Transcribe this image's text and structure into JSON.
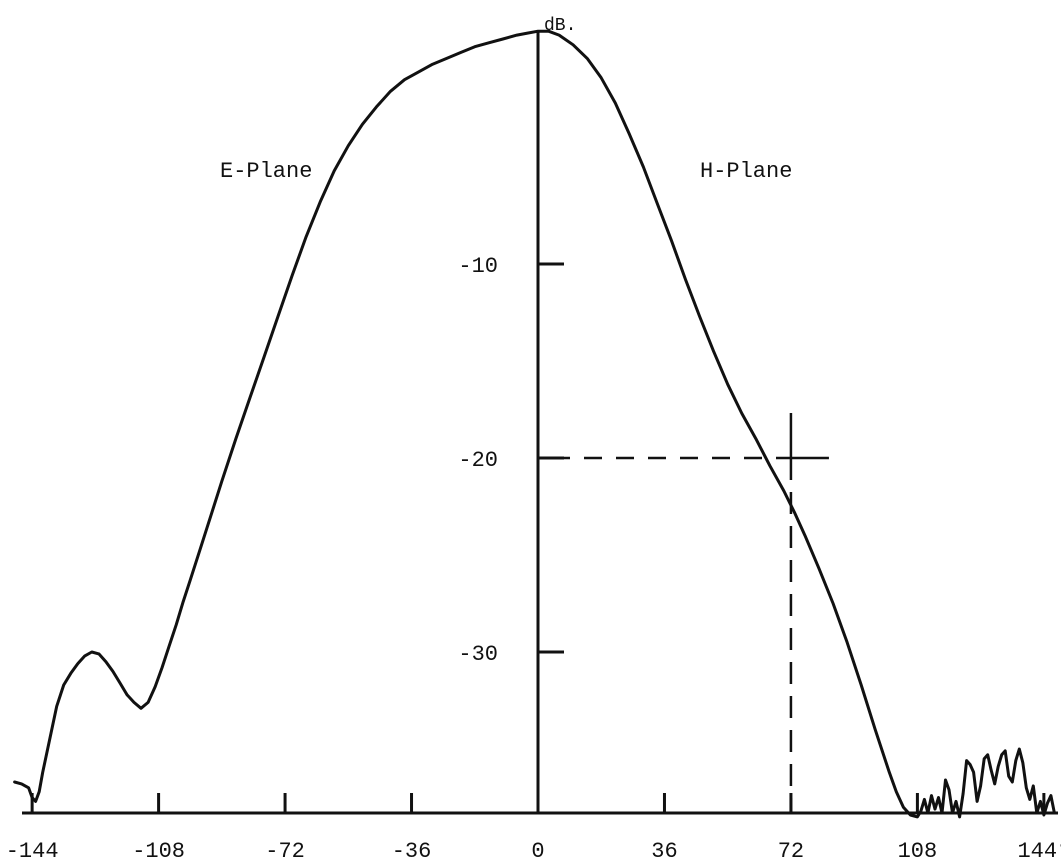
{
  "chart_data": {
    "type": "line",
    "title": "",
    "ylabel": "dB.",
    "xlabel": "",
    "x_tick_labels": [
      "-144",
      "-108",
      "-72",
      "-36",
      "0",
      "36",
      "72",
      "108",
      "144°"
    ],
    "x_ticks": [
      -144,
      -108,
      -72,
      -36,
      0,
      36,
      72,
      108,
      144
    ],
    "y_tick_labels": [
      "-10",
      "-20",
      "-30"
    ],
    "y_ticks": [
      -10,
      -20,
      -30
    ],
    "xlim": [
      -150,
      150
    ],
    "ylim": [
      -38.5,
      3.5
    ],
    "annotations": [
      {
        "text": "E-Plane"
      },
      {
        "text": "H-Plane"
      }
    ],
    "grid": false,
    "series": [
      {
        "x": [
          -149,
          -147,
          -145,
          -144,
          -143,
          -142,
          -141,
          -139,
          -137,
          -135,
          -133,
          -131,
          -129,
          -127,
          -125,
          -123,
          -121,
          -119,
          -117,
          -115,
          -113,
          -111,
          -109,
          -107,
          -105,
          -103,
          -101,
          -99,
          -96,
          -93,
          -90,
          -86,
          -82,
          -78,
          -74,
          -70,
          -66,
          -62,
          -58,
          -54,
          -50,
          -46,
          -42,
          -38,
          -34,
          -30,
          -26,
          -22,
          -18,
          -14,
          -10,
          -6,
          -3,
          0,
          3,
          6,
          10,
          14,
          18,
          22,
          26,
          30,
          34,
          38,
          42,
          46,
          50,
          54,
          58,
          62,
          66,
          70,
          73,
          76,
          80,
          84,
          88,
          92,
          96,
          100,
          102,
          104,
          106,
          108,
          109,
          110,
          111,
          112,
          113,
          114,
          115,
          116,
          117,
          118,
          119,
          120,
          121,
          122,
          123,
          124,
          125,
          126,
          127,
          128,
          129,
          130,
          131,
          132,
          133,
          134,
          135,
          136,
          137,
          138,
          139,
          140,
          141,
          142,
          143,
          144,
          145,
          146,
          147
        ],
        "y": [
          -36.7,
          -36.8,
          -37,
          -37.5,
          -37.7,
          -37.2,
          -36.2,
          -34.5,
          -32.8,
          -31.7,
          -31.1,
          -30.6,
          -30.2,
          -30,
          -30.1,
          -30.5,
          -31,
          -31.6,
          -32.2,
          -32.6,
          -32.9,
          -32.6,
          -31.8,
          -30.8,
          -29.7,
          -28.6,
          -27.4,
          -26.3,
          -24.6,
          -22.9,
          -21.2,
          -19,
          -16.9,
          -14.8,
          -12.7,
          -10.6,
          -8.6,
          -6.8,
          -5.2,
          -3.9,
          -2.8,
          -1.9,
          -1.1,
          -0.5,
          -0.1,
          0.3,
          0.6,
          0.9,
          1.2,
          1.4,
          1.6,
          1.8,
          1.9,
          2,
          2,
          1.8,
          1.3,
          0.6,
          -0.4,
          -1.7,
          -3.3,
          -5,
          -6.9,
          -8.8,
          -10.8,
          -12.7,
          -14.5,
          -16.2,
          -17.7,
          -19,
          -20.4,
          -21.7,
          -22.8,
          -24,
          -25.7,
          -27.5,
          -29.5,
          -31.7,
          -34,
          -36.2,
          -37.2,
          -38,
          -38.4,
          -38.5,
          -38.2,
          -37.6,
          -38.3,
          -37.4,
          -38.1,
          -37.5,
          -38.3,
          -36.6,
          -37.1,
          -38.3,
          -37.7,
          -38.5,
          -37.3,
          -35.6,
          -35.8,
          -36.2,
          -37.7,
          -36.9,
          -35.5,
          -35.3,
          -36.1,
          -36.8,
          -35.9,
          -35.3,
          -35.1,
          -36.4,
          -36.7,
          -35.6,
          -35,
          -35.7,
          -37,
          -37.6,
          -36.9,
          -38.3,
          -37.7,
          -38.4,
          -37.8,
          -37.4,
          -38.3
        ]
      }
    ]
  },
  "reference_point": {
    "x": 72,
    "y": -20
  }
}
